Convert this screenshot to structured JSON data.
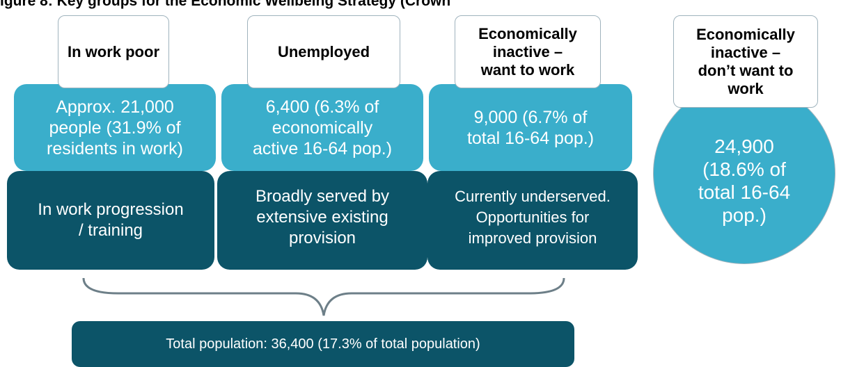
{
  "title": "igure 8: Key groups for the Economic Wellbeing Strategy (Crown",
  "groups": [
    {
      "label": "In work poor",
      "count": "Approx. 21,000\npeople (31.9% of\nresidents in work)",
      "provision": "In work progression\n/ training"
    },
    {
      "label": "Unemployed",
      "count": "6,400 (6.3% of\neconomically\nactive 16-64 pop.)",
      "provision": "Broadly served by\nextensive existing\nprovision"
    },
    {
      "label": "Economically\ninactive –\nwant to work",
      "count": "9,000 (6.7% of\ntotal 16-64 pop.)",
      "provision": "Currently underserved.\nOpportunities for\nimproved provision"
    }
  ],
  "outside_group": {
    "label": "Economically\ninactive –\ndon’t want to\nwork",
    "count": "24,900\n(18.6% of\ntotal 16-64\npop.)"
  },
  "total": "Total population: 36,400 (17.3% of total population)",
  "colors": {
    "light": "#3aaecb",
    "dark": "#0c5468",
    "brace": "#6d7f88"
  }
}
